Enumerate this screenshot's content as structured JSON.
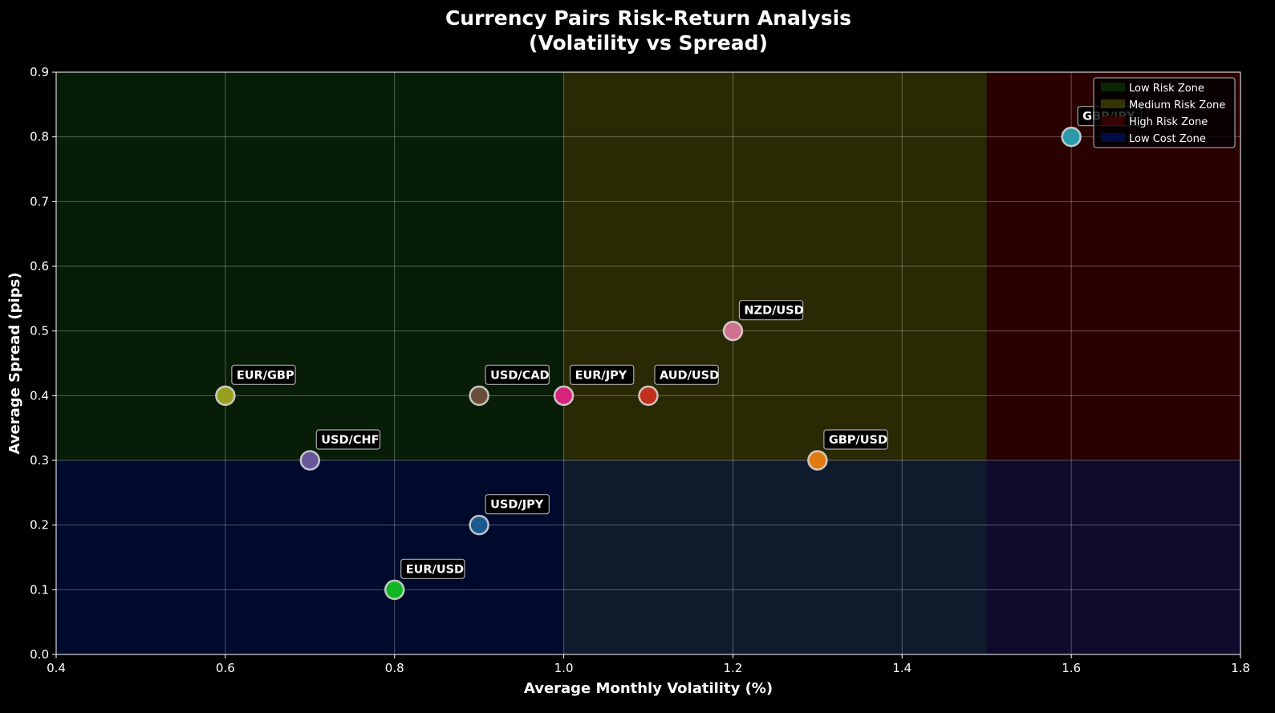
{
  "chart_data": {
    "type": "scatter",
    "title": "Currency Pairs Risk-Return Analysis\n(Volatility vs Spread)",
    "title_lines": [
      "Currency Pairs Risk-Return Analysis",
      "(Volatility vs Spread)"
    ],
    "xlabel": "Average Monthly Volatility (%)",
    "ylabel": "Average Spread (pips)",
    "xlim": [
      0.4,
      1.8
    ],
    "ylim": [
      0.0,
      0.9
    ],
    "xticks": [
      "0.4",
      "0.6",
      "0.8",
      "1.0",
      "1.2",
      "1.4",
      "1.6",
      "1.8"
    ],
    "yticks": [
      "0.0",
      "0.1",
      "0.2",
      "0.3",
      "0.4",
      "0.5",
      "0.6",
      "0.7",
      "0.8",
      "0.9"
    ],
    "grid": true,
    "legend_position": "top-right",
    "zones": [
      {
        "name": "Low Risk Zone",
        "x": [
          0.4,
          1.0
        ],
        "y": [
          0.3,
          0.9
        ],
        "color": "#0a2a0a"
      },
      {
        "name": "Medium Risk Zone",
        "x": [
          1.0,
          1.5
        ],
        "y": [
          0.0,
          0.9
        ],
        "color": "#3a3a06"
      },
      {
        "name": "High Risk Zone",
        "x": [
          1.5,
          1.8
        ],
        "y": [
          0.0,
          0.9
        ],
        "color": "#3a0202"
      },
      {
        "name": "Low Cost Zone",
        "x": [
          0.4,
          1.8
        ],
        "y": [
          0.0,
          0.3
        ],
        "color": "#00104a"
      }
    ],
    "points": [
      {
        "label": "EUR/USD",
        "x": 0.8,
        "y": 0.1,
        "color": "#12b522"
      },
      {
        "label": "USD/JPY",
        "x": 0.9,
        "y": 0.2,
        "color": "#1a5a8e"
      },
      {
        "label": "USD/CHF",
        "x": 0.7,
        "y": 0.3,
        "color": "#68569a"
      },
      {
        "label": "EUR/GBP",
        "x": 0.6,
        "y": 0.4,
        "color": "#98a020"
      },
      {
        "label": "USD/CAD",
        "x": 0.9,
        "y": 0.4,
        "color": "#6b4e3a"
      },
      {
        "label": "EUR/JPY",
        "x": 1.0,
        "y": 0.4,
        "color": "#d6247a"
      },
      {
        "label": "AUD/USD",
        "x": 1.1,
        "y": 0.4,
        "color": "#c0301c"
      },
      {
        "label": "NZD/USD",
        "x": 1.2,
        "y": 0.5,
        "color": "#d07090"
      },
      {
        "label": "GBP/USD",
        "x": 1.3,
        "y": 0.3,
        "color": "#e07a10"
      },
      {
        "label": "GBP/JPY",
        "x": 1.6,
        "y": 0.8,
        "color": "#2a9aaa"
      }
    ]
  }
}
